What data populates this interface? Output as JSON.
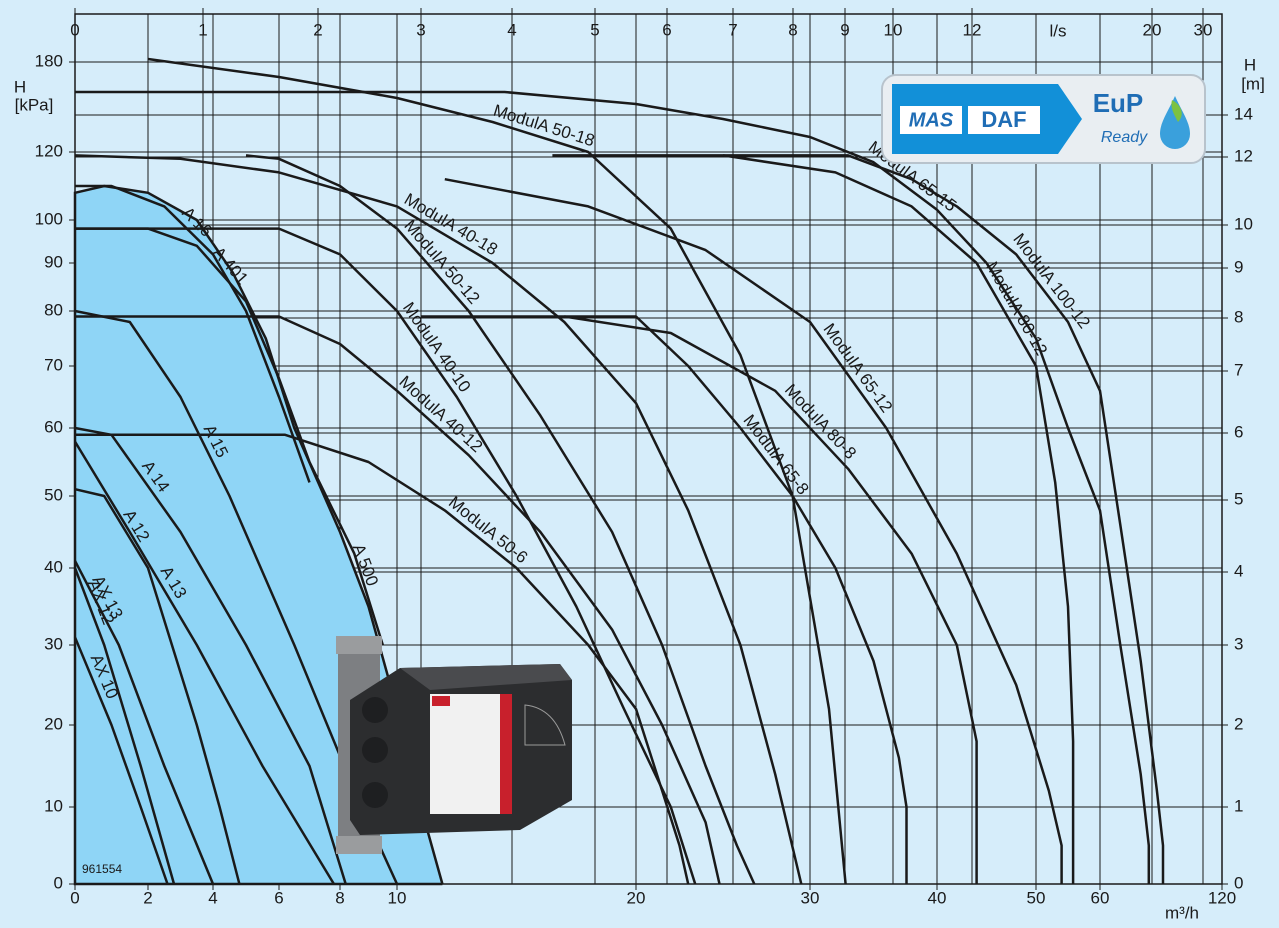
{
  "chart_data": {
    "type": "line",
    "ylabel": "H",
    "ylabel_unit": "[kPa]",
    "y2label": "H",
    "y2label_unit": "[m]",
    "xlabel": "m³/h",
    "x2label": "l/s",
    "code": "961554",
    "grid": true,
    "xlim": [
      0,
      120
    ],
    "xticks": [
      0,
      2,
      4,
      6,
      8,
      10,
      20,
      30,
      40,
      50,
      60,
      120
    ],
    "x2lim": [
      0,
      30
    ],
    "x2ticks": [
      0,
      1,
      2,
      3,
      4,
      5,
      6,
      7,
      8,
      9,
      10,
      12,
      20,
      30
    ],
    "ylim": [
      0,
      180
    ],
    "yticks": [
      0,
      10,
      20,
      30,
      40,
      50,
      60,
      70,
      80,
      90,
      100,
      120,
      180
    ],
    "y2lim": [
      0,
      14
    ],
    "y2ticks": [
      0,
      1,
      2,
      3,
      4,
      5,
      6,
      7,
      8,
      9,
      10,
      12,
      14
    ],
    "series": [
      {
        "name": "A 500",
        "color": "#8fd5f6",
        "area": true,
        "x": [
          0,
          0.8,
          2,
          3.5,
          4.6,
          5.6,
          6.5,
          8,
          9,
          10,
          11,
          11.9
        ],
        "values": [
          108,
          110,
          108,
          100,
          88,
          75,
          60,
          45,
          35,
          22,
          10,
          0
        ]
      },
      {
        "name": "AX 10",
        "color": "#1a1a1a",
        "x": [
          0,
          1,
          1.8,
          2.6
        ],
        "values": [
          31,
          20,
          10,
          0
        ]
      },
      {
        "name": "AX 12",
        "color": "#1a1a1a",
        "x": [
          0,
          0.8,
          1.8,
          2.8
        ],
        "values": [
          40,
          30,
          15,
          0
        ]
      },
      {
        "name": "AX 13",
        "color": "#1a1a1a",
        "x": [
          0,
          1.2,
          2.5,
          4
        ],
        "values": [
          41,
          30,
          15,
          0
        ]
      },
      {
        "name": "A 12",
        "color": "#1a1a1a",
        "x": [
          0,
          0.8,
          2,
          3.5,
          4.2,
          4.8
        ],
        "values": [
          51,
          50,
          40,
          20,
          10,
          0
        ]
      },
      {
        "name": "A 13",
        "color": "#1a1a1a",
        "x": [
          0,
          1.5,
          3.5,
          5.5,
          7.8
        ],
        "values": [
          58,
          45,
          30,
          15,
          0
        ]
      },
      {
        "name": "A 14",
        "color": "#1a1a1a",
        "x": [
          0,
          1,
          3,
          5,
          7,
          8.2
        ],
        "values": [
          60,
          59,
          45,
          30,
          15,
          0
        ]
      },
      {
        "name": "A 15",
        "color": "#1a1a1a",
        "x": [
          0,
          1.5,
          3,
          4.5,
          6.5,
          8.5,
          10
        ],
        "values": [
          80,
          78,
          65,
          50,
          30,
          12,
          0
        ]
      },
      {
        "name": "A 16",
        "color": "#1a1a1a",
        "x": [
          0,
          1,
          2.5,
          4,
          5,
          6,
          7
        ],
        "values": [
          110,
          110,
          104,
          92,
          80,
          65,
          52
        ]
      },
      {
        "name": "A 401",
        "color": "#1a1a1a",
        "x": [
          0,
          2,
          3.5,
          5,
          6,
          7,
          8.5,
          9.5
        ],
        "values": [
          98,
          98,
          94,
          82,
          68,
          55,
          42,
          30
        ]
      },
      {
        "name": "ModulA 50-6",
        "color": "#1a1a1a",
        "x": [
          0,
          6.2,
          9,
          12,
          15,
          18,
          20,
          21.5,
          22.5,
          23
        ],
        "values": [
          59,
          59,
          55,
          48,
          40,
          30,
          22,
          12,
          5,
          0
        ]
      },
      {
        "name": "ModulA 40-10",
        "color": "#1a1a1a",
        "x": [
          0,
          6,
          8,
          10,
          12.5,
          15,
          17.5,
          19.5,
          22,
          23.4
        ],
        "values": [
          98,
          98,
          92,
          80,
          65,
          50,
          35,
          22,
          10,
          0
        ]
      },
      {
        "name": "ModulA 40-12",
        "color": "#1a1a1a",
        "x": [
          0,
          6,
          8,
          10,
          13,
          16,
          19,
          21.5,
          24,
          24.8
        ],
        "values": [
          79,
          79,
          74,
          66,
          56,
          45,
          32,
          20,
          8,
          0
        ]
      },
      {
        "name": "ModulA 50-12",
        "color": "#1a1a1a",
        "x": [
          5,
          6,
          8,
          10,
          13,
          16,
          19,
          21.5,
          24,
          25.8,
          26.8
        ],
        "values": [
          119,
          118,
          110,
          98,
          80,
          62,
          45,
          30,
          15,
          5,
          0
        ]
      },
      {
        "name": "ModulA 40-18",
        "color": "#1a1a1a",
        "x": [
          0,
          3,
          6,
          10,
          14,
          17,
          20,
          23,
          26,
          28,
          29.5
        ],
        "values": [
          119,
          118,
          114,
          104,
          90,
          78,
          64,
          48,
          30,
          14,
          0
        ]
      },
      {
        "name": "ModulA 50-18",
        "color": "#1a1a1a",
        "x": [
          2,
          6,
          10,
          14,
          18,
          22,
          26,
          29,
          31.5,
          32.8
        ],
        "values": [
          182,
          170,
          156,
          140,
          120,
          98,
          72,
          50,
          22,
          0
        ]
      },
      {
        "name": "ModulA 65-8",
        "color": "#1a1a1a",
        "x": [
          11,
          20,
          23,
          26,
          29,
          32,
          35,
          37,
          37.6,
          37.6
        ],
        "values": [
          79,
          79,
          70,
          60,
          50,
          40,
          28,
          16,
          10,
          0
        ]
      },
      {
        "name": "ModulA 80-8",
        "color": "#1a1a1a",
        "x": [
          17,
          22,
          28,
          33,
          38,
          42,
          44,
          44
        ],
        "values": [
          79,
          76,
          66,
          54,
          42,
          30,
          18,
          0
        ]
      },
      {
        "name": "ModulA 65-12",
        "color": "#1a1a1a",
        "x": [
          12,
          18,
          24,
          30,
          36,
          42,
          48,
          52,
          54,
          54
        ],
        "values": [
          112,
          104,
          93,
          78,
          60,
          42,
          25,
          12,
          5,
          0
        ]
      },
      {
        "name": "ModulA 80-12",
        "color": "#1a1a1a",
        "x": [
          25,
          32,
          38,
          44,
          50,
          53,
          55,
          55.8,
          55.8
        ],
        "values": [
          119,
          114,
          104,
          90,
          70,
          52,
          35,
          18,
          0
        ]
      },
      {
        "name": "ModulA 65-15",
        "color": "#1a1a1a",
        "x": [
          0,
          14.5,
          20,
          25,
          30,
          35,
          40,
          45,
          50,
          55,
          60,
          70,
          80,
          84,
          84
        ],
        "values": [
          160,
          160,
          152,
          142,
          130,
          117,
          103,
          90,
          75,
          60,
          48,
          30,
          14,
          5,
          0
        ]
      },
      {
        "name": "ModulA 100-12",
        "color": "#1a1a1a",
        "x": [
          16.5,
          33,
          38,
          42,
          48,
          55,
          60,
          70,
          80,
          88,
          91,
          91
        ],
        "values": [
          119,
          119,
          112,
          104,
          92,
          78,
          66,
          46,
          28,
          12,
          5,
          0
        ]
      }
    ]
  },
  "logo": {
    "brand1": "MAS",
    "brand2": "DAF",
    "eup": "EuP",
    "ready": "Ready"
  }
}
